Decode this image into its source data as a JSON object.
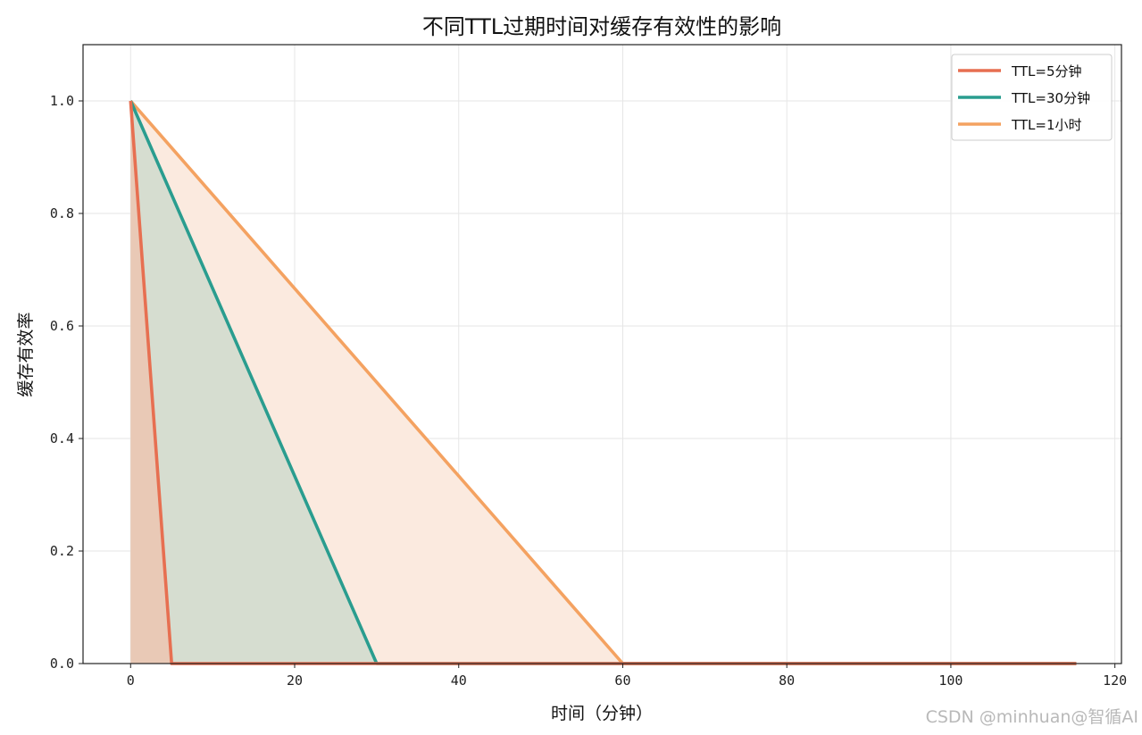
{
  "chart_data": {
    "type": "line",
    "title": "不同TTL过期时间对缓存有效性的影响",
    "xlabel": "时间（分钟）",
    "ylabel": "缓存有效率",
    "xlim": [
      -5.8,
      120.8
    ],
    "ylim": [
      0,
      1.1
    ],
    "xticks": [
      "0",
      "20",
      "40",
      "60",
      "80",
      "100",
      "120"
    ],
    "xtick_values": [
      0,
      20,
      40,
      60,
      80,
      100,
      120
    ],
    "yticks": [
      "0.0",
      "0.2",
      "0.4",
      "0.6",
      "0.8",
      "1.0"
    ],
    "ytick_values": [
      0,
      0.2,
      0.4,
      0.6,
      0.8,
      1.0
    ],
    "grid": true,
    "legend_position": "top-right",
    "series": [
      {
        "name": "TTL=5分钟",
        "color": "#e76f51",
        "fill": "#e9c9b6",
        "x": [
          0,
          5,
          115.3
        ],
        "y": [
          1.0,
          0.0,
          0.0
        ]
      },
      {
        "name": "TTL=30分钟",
        "color": "#2a9d8f",
        "fill": "#d6ddd0",
        "x": [
          0,
          30,
          115.3
        ],
        "y": [
          1.0,
          0.0,
          0.0
        ]
      },
      {
        "name": "TTL=1小时",
        "color": "#f4a261",
        "fill": "#fbeadf",
        "x": [
          0,
          60,
          115.3
        ],
        "y": [
          1.0,
          0.0,
          0.0
        ]
      }
    ]
  },
  "watermark": "CSDN @minhuan@智循AI"
}
